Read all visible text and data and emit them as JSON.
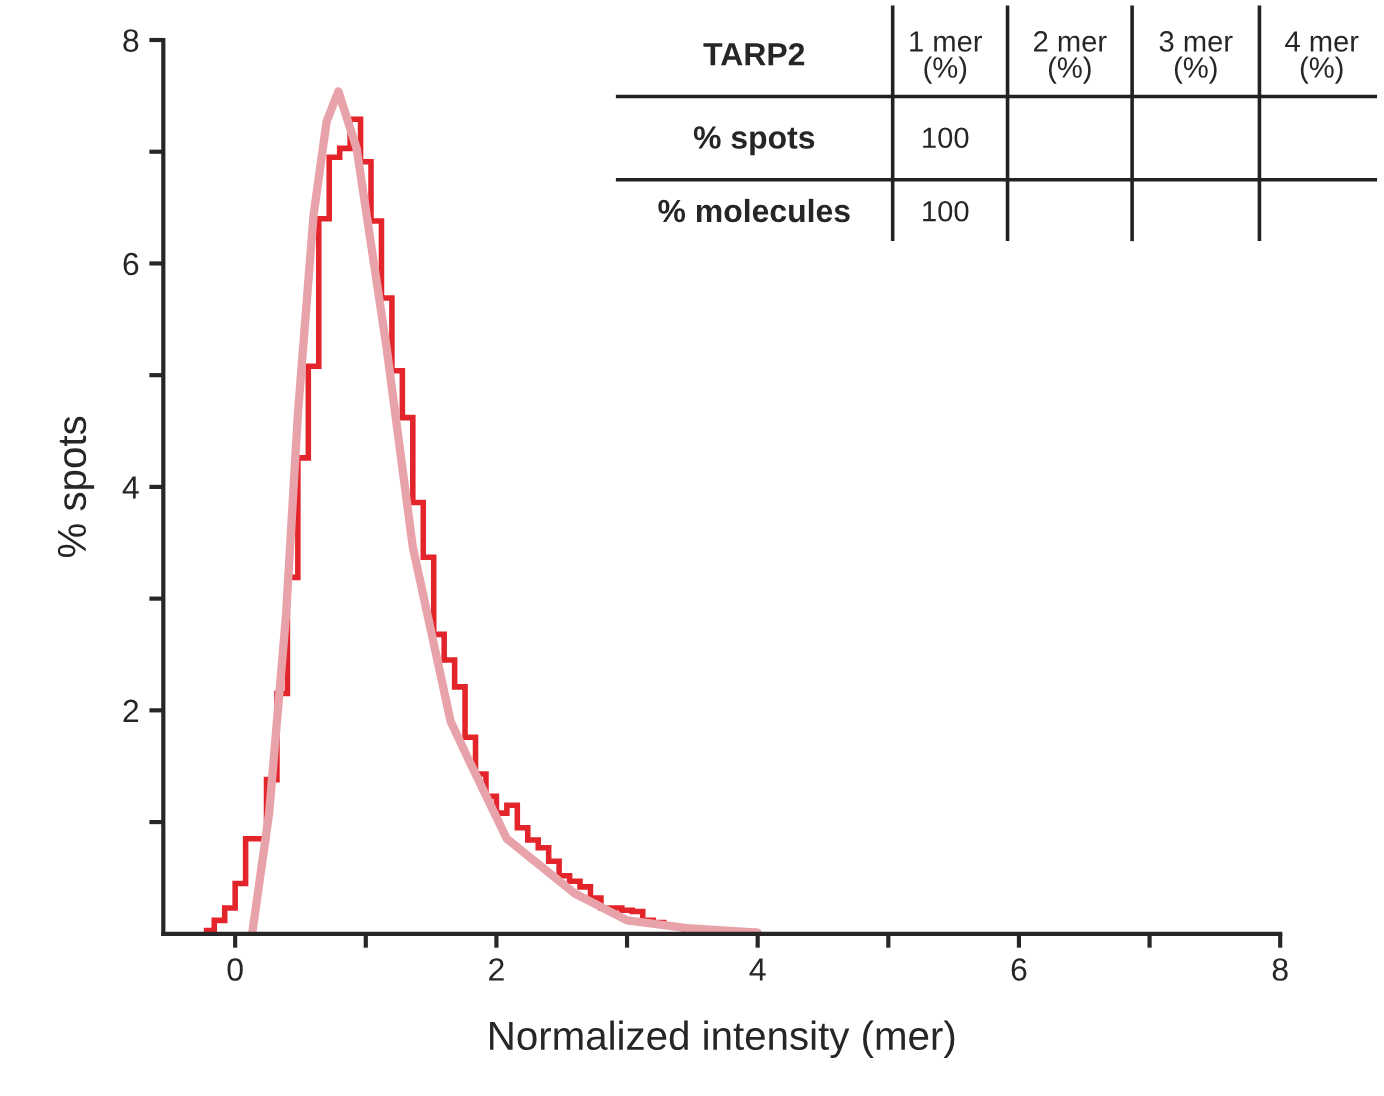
{
  "chart_data": {
    "type": "histogram",
    "xlabel": "Normalized intensity (mer)",
    "ylabel": "% spots",
    "xlim": [
      -0.55,
      8
    ],
    "ylim": [
      0,
      8
    ],
    "xticks": [
      0,
      {
        "value": 1,
        "label": null
      },
      2,
      {
        "value": 3,
        "label": null
      },
      4,
      {
        "value": 5,
        "label": null
      },
      6,
      {
        "value": 7,
        "label": null
      },
      8
    ],
    "yticks": [
      {
        "value": 1,
        "label": null
      },
      2,
      {
        "value": 3,
        "label": null
      },
      4,
      {
        "value": 5,
        "label": null
      },
      6,
      {
        "value": 7,
        "label": null
      },
      8
    ],
    "grid": false,
    "legend": false,
    "series": [
      {
        "type": "histogram",
        "color": "#e3242b",
        "bins": [
          -0.24,
          -0.16,
          -0.08,
          0.0,
          0.08,
          0.16,
          0.24,
          0.32,
          0.4,
          0.48,
          0.56,
          0.64,
          0.72,
          0.8,
          0.88,
          0.96,
          1.04,
          1.12,
          1.2,
          1.28,
          1.36,
          1.44,
          1.52,
          1.6,
          1.68,
          1.76,
          1.84,
          1.92,
          2.0,
          2.08,
          2.16,
          2.24,
          2.32,
          2.4,
          2.48,
          2.56,
          2.64,
          2.72,
          2.8,
          2.88,
          2.96,
          3.04,
          3.12,
          3.2,
          3.28,
          3.36,
          3.44,
          3.52,
          3.6,
          3.68,
          3.76,
          3.84,
          3.92,
          4.0
        ],
        "values": [
          0.03,
          0.12,
          0.23,
          0.45,
          0.85,
          0.85,
          1.38,
          2.15,
          3.19,
          4.26,
          5.08,
          6.4,
          6.95,
          7.03,
          7.29,
          6.91,
          6.38,
          5.69,
          5.04,
          4.62,
          3.86,
          3.37,
          2.68,
          2.45,
          2.21,
          1.76,
          1.43,
          1.23,
          1.08,
          1.15,
          0.95,
          0.84,
          0.77,
          0.65,
          0.52,
          0.47,
          0.42,
          0.32,
          0.23,
          0.23,
          0.21,
          0.2,
          0.12,
          0.1,
          0.07,
          0.06,
          0.03,
          0.02,
          0.02,
          0.02,
          0.02,
          0.02,
          0.02
        ]
      },
      {
        "type": "line",
        "color": "#e8a3aa",
        "x": [
          0.13,
          0.26,
          0.39,
          0.48,
          0.6,
          0.7,
          0.79,
          0.93,
          1.16,
          1.36,
          1.65,
          1.77,
          2.08,
          2.6,
          3.0,
          3.46,
          4.0
        ],
        "values": [
          0.0,
          1.08,
          2.86,
          4.65,
          6.43,
          7.27,
          7.54,
          7.03,
          5.24,
          3.46,
          1.9,
          1.6,
          0.85,
          0.36,
          0.12,
          0.05,
          0.01
        ]
      }
    ],
    "annotations": [
      "TARP2",
      "1 mer\n(%)",
      "2 mer\n(%)",
      "3 mer\n(%)",
      "4 mer\n(%)",
      "% spots",
      "100",
      "% molecules",
      "100"
    ]
  }
}
